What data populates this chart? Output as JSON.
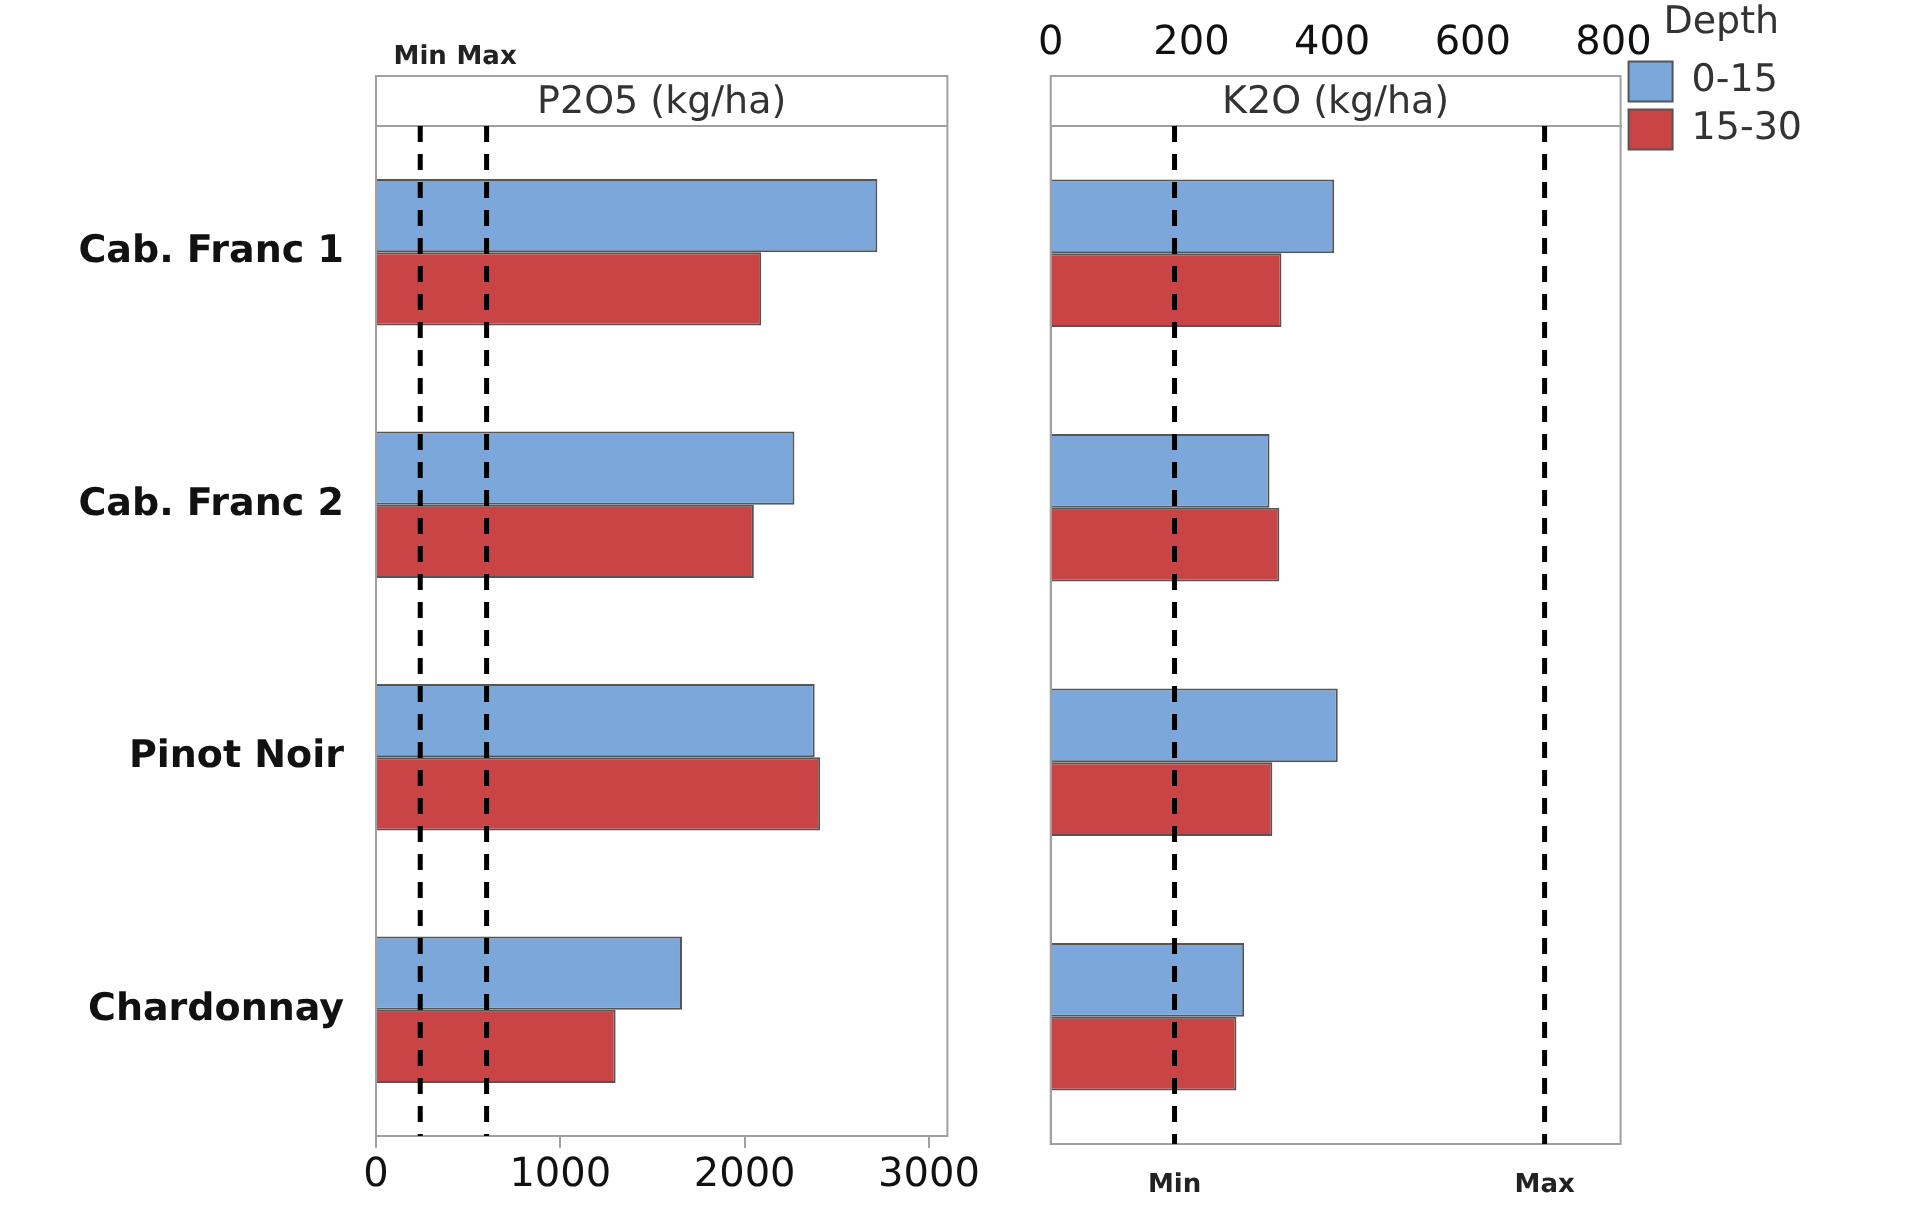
{
  "chart_data": [
    {
      "type": "bar",
      "orientation": "horizontal",
      "title": "P2O5 (kg/ha)",
      "categories": [
        "Cab. Franc 1",
        "Cab. Franc 2",
        "Pinot Noir",
        "Chardonnay"
      ],
      "series": [
        {
          "color": "#7ba7db",
          "values": [
            2720,
            2270,
            2380,
            1660
          ]
        },
        {
          "color": "#c94545",
          "values": [
            2090,
            2050,
            2410,
            1300
          ]
        }
      ],
      "xlim": [
        0,
        3100
      ],
      "xticks": [
        0,
        1000,
        2000,
        3000
      ],
      "ref_lines": [
        {
          "axis": "x",
          "value": 240,
          "label": "Min",
          "color": "#000000",
          "line_style": "dashed"
        },
        {
          "axis": "x",
          "value": 600,
          "label": "Max",
          "color": "#000000",
          "line_style": "dashed"
        }
      ],
      "legend": false
    },
    {
      "type": "bar",
      "orientation": "horizontal",
      "title": "K2O (kg/ha)",
      "categories": [
        null,
        null,
        null,
        null
      ],
      "series": [
        {
          "name": "0-15",
          "color": "#7ba7db",
          "values": [
            403,
            311,
            408,
            275
          ],
          "axis": "x2"
        },
        {
          "name": "15-30",
          "color": "#c94545",
          "values": [
            328,
            325,
            315,
            264
          ],
          "axis": "x2"
        }
      ],
      "x2lim": [
        0,
        810
      ],
      "x2ticks": [
        0,
        200,
        400,
        600,
        800
      ],
      "ref_lines": [
        {
          "axis": "x2",
          "value": 176,
          "label": "Min",
          "color": "#000000",
          "line_style": "dashed"
        },
        {
          "axis": "x2",
          "value": 702,
          "label": "Max",
          "color": "#000000",
          "line_style": "dashed"
        }
      ],
      "legend": "top right",
      "legend_title": "Depth",
      "tick_labels": "x"
    }
  ]
}
